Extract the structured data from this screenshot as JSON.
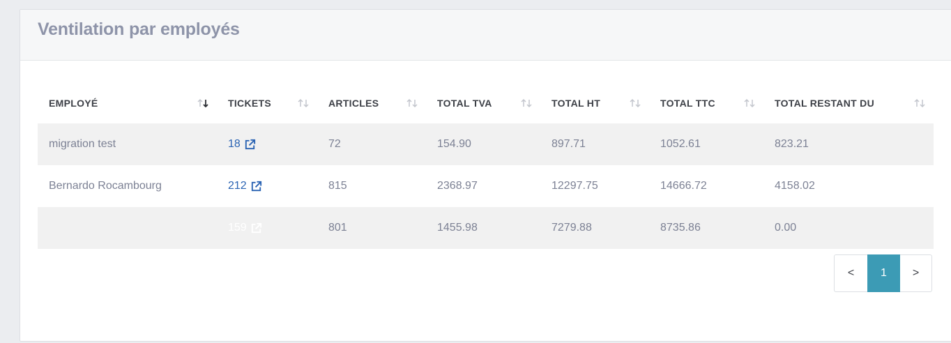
{
  "panel": {
    "title": "Ventilation par employés"
  },
  "table": {
    "columns": [
      {
        "label": "EMPLOYÉ",
        "sorted": "desc"
      },
      {
        "label": "TICKETS",
        "sorted": "none"
      },
      {
        "label": "ARTICLES",
        "sorted": "none"
      },
      {
        "label": "TOTAL TVA",
        "sorted": "none"
      },
      {
        "label": "TOTAL HT",
        "sorted": "none"
      },
      {
        "label": "TOTAL TTC",
        "sorted": "none"
      },
      {
        "label": "TOTAL RESTANT DU",
        "sorted": "none"
      }
    ],
    "rows": [
      {
        "employe": "migration test",
        "tickets": "18",
        "articles": "72",
        "tva": "154.90",
        "ht": "897.71",
        "ttc": "1052.61",
        "restant": "823.21"
      },
      {
        "employe": "Bernardo Rocambourg",
        "tickets": "212",
        "articles": "815",
        "tva": "2368.97",
        "ht": "12297.75",
        "ttc": "14666.72",
        "restant": "4158.02"
      },
      {
        "employe": "",
        "tickets": "159",
        "articles": "801",
        "tva": "1455.98",
        "ht": "7279.88",
        "ttc": "8735.86",
        "restant": "0.00"
      }
    ]
  },
  "pagination": {
    "prev": "<",
    "current": "1",
    "next": ">"
  },
  "colors": {
    "link": "#2a63b3",
    "active_page": "#3c9bb5",
    "title": "#8e94a9"
  },
  "icons": {
    "sort": "sort-arrows-icon",
    "external": "external-link-icon"
  }
}
